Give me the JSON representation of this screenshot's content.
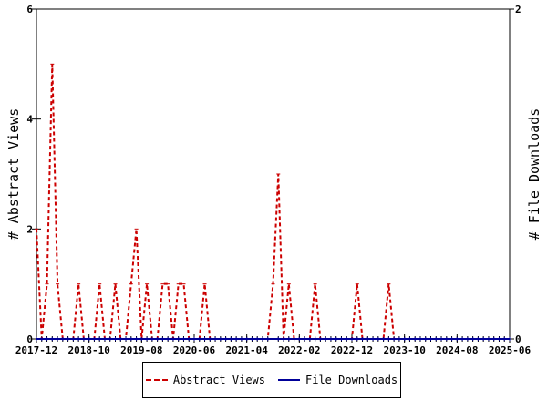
{
  "chart_data": {
    "type": "line",
    "xlabel": "",
    "ylabel_left": "# Abstract Views",
    "ylabel_right": "# File Downloads",
    "ylim_left": [
      0,
      6
    ],
    "ylim_right": [
      0,
      2
    ],
    "yticks_left": [
      0,
      2,
      4,
      6
    ],
    "yticks_right": [
      0,
      2
    ],
    "x_tick_labels": [
      "2017-12",
      "2018-10",
      "2019-08",
      "2020-06",
      "2021-04",
      "2022-02",
      "2022-12",
      "2023-10",
      "2024-08",
      "2025-06"
    ],
    "x_start": "2017-12",
    "x_end": "2025-06",
    "grid": false,
    "legend_position": "bottom",
    "series": [
      {
        "name": "Abstract Views",
        "axis": "left",
        "color": "#cc0000",
        "style": "dashed",
        "points": [
          [
            "2017-12",
            2
          ],
          [
            "2018-01",
            0
          ],
          [
            "2018-02",
            1
          ],
          [
            "2018-03",
            5
          ],
          [
            "2018-04",
            1
          ],
          [
            "2018-05",
            0
          ],
          [
            "2018-06",
            0
          ],
          [
            "2018-07",
            0
          ],
          [
            "2018-08",
            1
          ],
          [
            "2018-09",
            0
          ],
          [
            "2018-10",
            0
          ],
          [
            "2018-11",
            0
          ],
          [
            "2018-12",
            1
          ],
          [
            "2019-01",
            0
          ],
          [
            "2019-02",
            0
          ],
          [
            "2019-03",
            1
          ],
          [
            "2019-04",
            0
          ],
          [
            "2019-05",
            0
          ],
          [
            "2019-06",
            1
          ],
          [
            "2019-07",
            2
          ],
          [
            "2019-08",
            0
          ],
          [
            "2019-09",
            1
          ],
          [
            "2019-10",
            0
          ],
          [
            "2019-11",
            0
          ],
          [
            "2019-12",
            1
          ],
          [
            "2020-01",
            1
          ],
          [
            "2020-02",
            0
          ],
          [
            "2020-03",
            1
          ],
          [
            "2020-04",
            1
          ],
          [
            "2020-05",
            0
          ],
          [
            "2020-06",
            0
          ],
          [
            "2020-07",
            0
          ],
          [
            "2020-08",
            1
          ],
          [
            "2020-09",
            0
          ],
          [
            "2020-10",
            0
          ],
          [
            "2020-11",
            0
          ],
          [
            "2020-12",
            0
          ],
          [
            "2021-01",
            0
          ],
          [
            "2021-02",
            0
          ],
          [
            "2021-03",
            0
          ],
          [
            "2021-04",
            0
          ],
          [
            "2021-05",
            0
          ],
          [
            "2021-06",
            0
          ],
          [
            "2021-07",
            0
          ],
          [
            "2021-08",
            0
          ],
          [
            "2021-09",
            1
          ],
          [
            "2021-10",
            3
          ],
          [
            "2021-11",
            0
          ],
          [
            "2021-12",
            1
          ],
          [
            "2022-01",
            0
          ],
          [
            "2022-02",
            0
          ],
          [
            "2022-03",
            0
          ],
          [
            "2022-04",
            0
          ],
          [
            "2022-05",
            1
          ],
          [
            "2022-06",
            0
          ],
          [
            "2022-07",
            0
          ],
          [
            "2022-08",
            0
          ],
          [
            "2022-09",
            0
          ],
          [
            "2022-10",
            0
          ],
          [
            "2022-11",
            0
          ],
          [
            "2022-12",
            0
          ],
          [
            "2023-01",
            1
          ],
          [
            "2023-02",
            0
          ],
          [
            "2023-03",
            0
          ],
          [
            "2023-04",
            0
          ],
          [
            "2023-05",
            0
          ],
          [
            "2023-06",
            0
          ],
          [
            "2023-07",
            1
          ],
          [
            "2023-08",
            0
          ],
          [
            "2023-09",
            0
          ],
          [
            "2023-10",
            0
          ],
          [
            "2023-11",
            0
          ],
          [
            "2023-12",
            0
          ],
          [
            "2024-01",
            0
          ],
          [
            "2024-02",
            0
          ],
          [
            "2024-03",
            0
          ],
          [
            "2024-04",
            0
          ],
          [
            "2024-05",
            0
          ],
          [
            "2024-06",
            0
          ],
          [
            "2024-07",
            0
          ],
          [
            "2024-08",
            0
          ],
          [
            "2024-09",
            0
          ],
          [
            "2024-10",
            0
          ],
          [
            "2024-11",
            0
          ],
          [
            "2024-12",
            0
          ],
          [
            "2025-01",
            0
          ],
          [
            "2025-02",
            0
          ],
          [
            "2025-03",
            0
          ],
          [
            "2025-04",
            0
          ],
          [
            "2025-05",
            0
          ],
          [
            "2025-06",
            0
          ]
        ]
      },
      {
        "name": "File Downloads",
        "axis": "right",
        "color": "#000099",
        "style": "solid",
        "points": [
          [
            "2017-12",
            0
          ],
          [
            "2025-06",
            0
          ]
        ]
      }
    ]
  },
  "legend": {
    "views_label": "Abstract Views",
    "downloads_label": "File Downloads"
  }
}
